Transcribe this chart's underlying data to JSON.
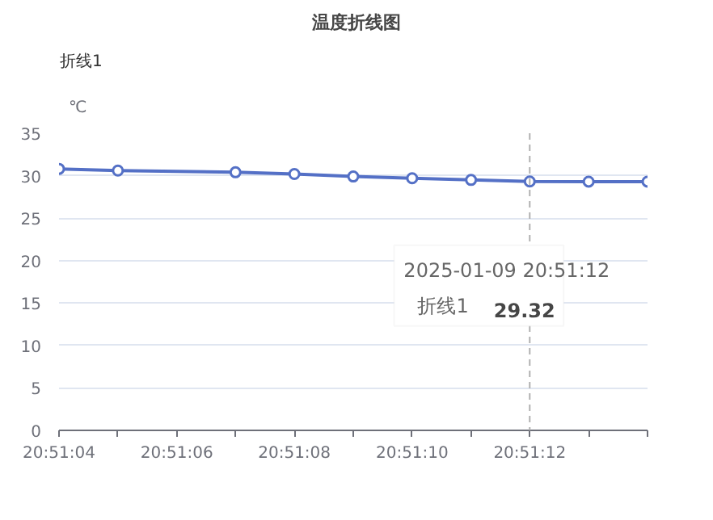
{
  "chart_data": {
    "type": "line",
    "title": "温度折线图",
    "ylabel": "℃",
    "x": [
      20.851111,
      20.851389,
      20.851944,
      20.852222,
      20.8525,
      20.852778,
      20.853056,
      20.853333,
      20.853611,
      20.853889
    ],
    "series": [
      {
        "name": "折线1",
        "color": "#5470c6",
        "values": [
          30.8,
          30.6,
          30.4,
          30.2,
          29.9,
          29.7,
          29.5,
          29.32,
          29.3,
          29.3
        ]
      }
    ],
    "xlim": [
      20.851111,
      20.853889
    ],
    "xticks": [
      {
        "value": 20.851111,
        "label": "20:51:04"
      },
      {
        "value": 20.851389,
        "label": null
      },
      {
        "value": 20.851667,
        "label": "20:51:06"
      },
      {
        "value": 20.851944,
        "label": null
      },
      {
        "value": 20.852222,
        "label": "20:51:08"
      },
      {
        "value": 20.8525,
        "label": null
      },
      {
        "value": 20.852778,
        "label": "20:51:10"
      },
      {
        "value": 20.853056,
        "label": null
      },
      {
        "value": 20.853333,
        "label": "20:51:12"
      },
      {
        "value": 20.853611,
        "label": null
      },
      {
        "value": 20.853889,
        "label": null
      }
    ],
    "ylim": [
      0,
      35
    ],
    "yticks": [
      0,
      5,
      10,
      15,
      20,
      25,
      30,
      35
    ],
    "grid": "y",
    "legend": "top left",
    "marker": "circle",
    "line_style": "solid",
    "ref_lines": [
      {
        "axis": "x",
        "value": 20.853333,
        "color": "#b0b0b0",
        "line_style": "dashed"
      }
    ],
    "annotations": [
      "2025-01-09 20:51:12",
      "29.32"
    ]
  }
}
